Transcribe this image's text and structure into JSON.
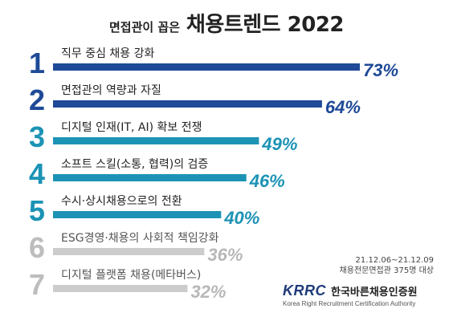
{
  "title": {
    "small": "면접관이 꼽은",
    "big": "채용트렌드 2022"
  },
  "chart_data": {
    "type": "bar",
    "orientation": "horizontal",
    "categories": [
      "직무 중심 채용 강화",
      "면접관의 역량과 자질",
      "디지털 인재(IT, AI) 확보 전쟁",
      "소프트 스킬(소통, 협력)의 검증",
      "수시·상시채용으로의 전환",
      "ESG경영·채용의 사회적 책임강화",
      "디지털 플랫폼 채용(메타버스)"
    ],
    "ranks": [
      "1",
      "2",
      "3",
      "4",
      "5",
      "6",
      "7"
    ],
    "values": [
      73,
      64,
      49,
      46,
      40,
      36,
      32
    ],
    "value_labels": [
      "73%",
      "64%",
      "49%",
      "46%",
      "40%",
      "36%",
      "32%"
    ],
    "bar_colors": [
      "#1e4a97",
      "#1e4a97",
      "#1c93b5",
      "#1c93b5",
      "#1c93b5",
      "#cccccc",
      "#cccccc"
    ],
    "rank_colors": [
      "#1e4a97",
      "#1e4a97",
      "#1c93b5",
      "#1c93b5",
      "#1c93b5",
      "#bdbdbd",
      "#bdbdbd"
    ],
    "label_colors": [
      "#222222",
      "#222222",
      "#222222",
      "#222222",
      "#222222",
      "#555555",
      "#555555"
    ],
    "value_colors": [
      "#1e4a97",
      "#1e4a97",
      "#1c93b5",
      "#1c93b5",
      "#1c93b5",
      "#b8b8b8",
      "#b8b8b8"
    ],
    "xlim": [
      0,
      73
    ]
  },
  "note": {
    "period": "21.12.06~21.12.09",
    "target": "채용전문면접관 375명 대상"
  },
  "logo": {
    "brand": "KRRC",
    "name_ko": "한국바른채용인증원",
    "name_en": "Korea Right Recruitment Certification Authority"
  }
}
